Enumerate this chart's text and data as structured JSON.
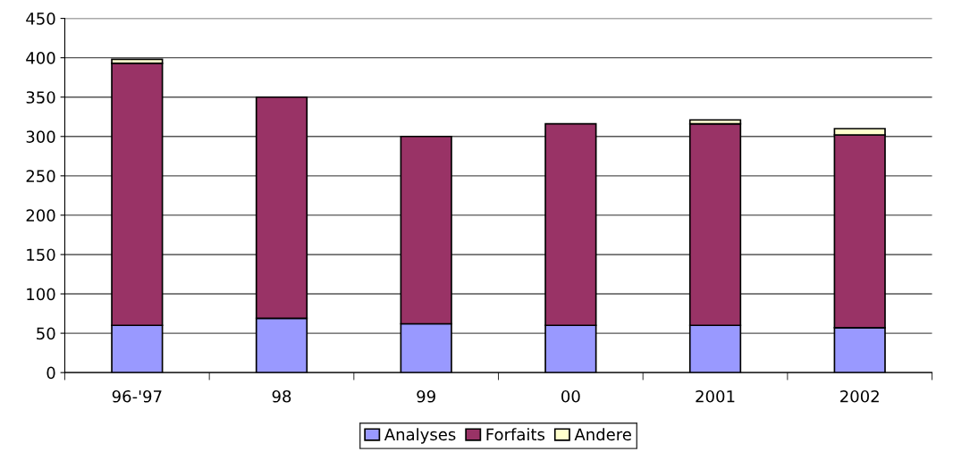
{
  "chart_data": {
    "type": "bar",
    "stacked": true,
    "categories": [
      "96-'97",
      "98",
      "99",
      "00",
      "2001",
      "2002"
    ],
    "series": [
      {
        "name": "Analyses",
        "color": "#9999ff",
        "values": [
          60,
          69,
          62,
          60,
          60,
          57
        ]
      },
      {
        "name": "Forfaits",
        "color": "#993366",
        "values": [
          333,
          281,
          238,
          256,
          256,
          245
        ]
      },
      {
        "name": "Andere",
        "color": "#ffffcc",
        "values": [
          5,
          null,
          null,
          null,
          5,
          8
        ]
      }
    ],
    "ylim": [
      0,
      450
    ],
    "yticks": [
      0,
      50,
      100,
      150,
      200,
      250,
      300,
      350,
      400,
      450
    ],
    "grid": "y",
    "legend": "bottom"
  }
}
